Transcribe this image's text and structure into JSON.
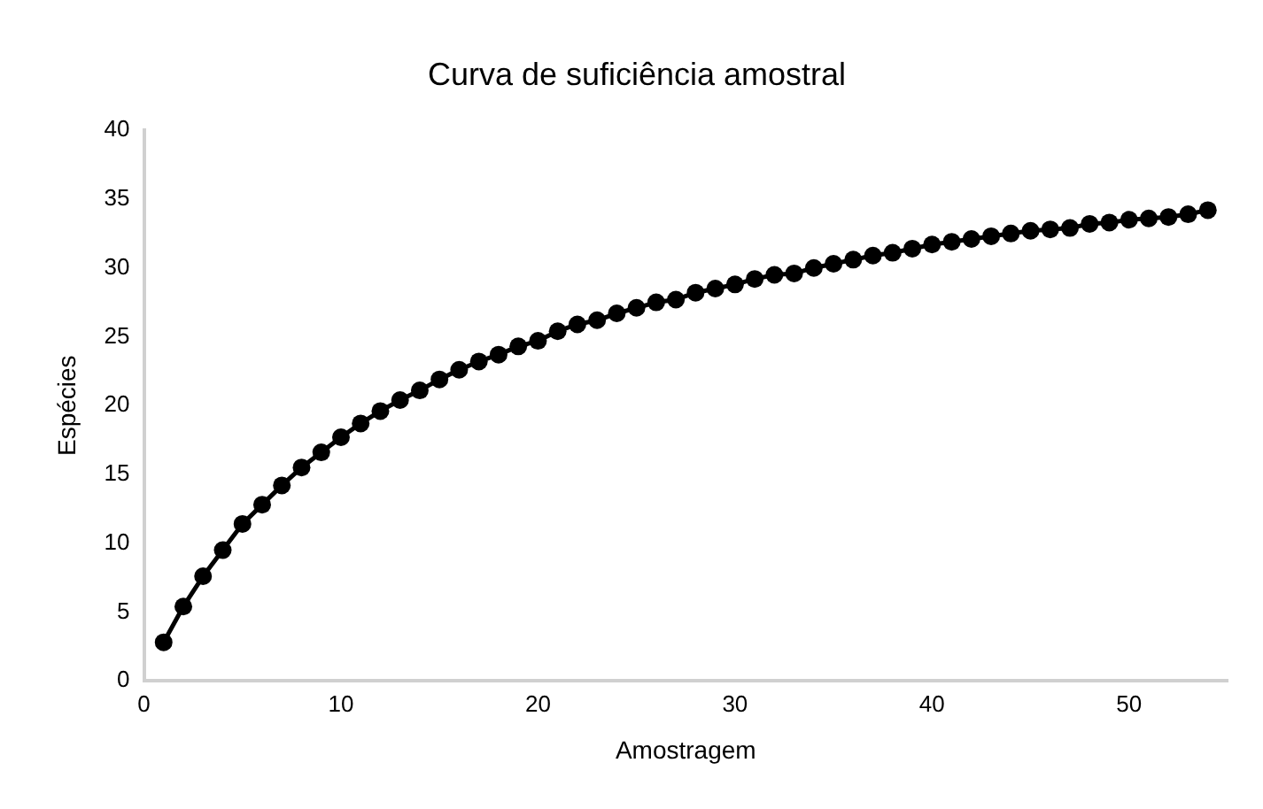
{
  "chart_data": {
    "type": "line",
    "title": "Curva de suficiência amostral",
    "xlabel": "Amostragem",
    "ylabel": "Espécies",
    "x": [
      1,
      2,
      3,
      4,
      5,
      6,
      7,
      8,
      9,
      10,
      11,
      12,
      13,
      14,
      15,
      16,
      17,
      18,
      19,
      20,
      21,
      22,
      23,
      24,
      25,
      26,
      27,
      28,
      29,
      30,
      31,
      32,
      33,
      34,
      35,
      36,
      37,
      38,
      39,
      40,
      41,
      42,
      43,
      44,
      45,
      46,
      47,
      48,
      49,
      50,
      51,
      52,
      53,
      54
    ],
    "series": [
      {
        "color": "#000000",
        "values": [
          2.8,
          5.4,
          7.6,
          9.5,
          11.4,
          12.8,
          14.2,
          15.5,
          16.6,
          17.7,
          18.7,
          19.6,
          20.4,
          21.1,
          21.9,
          22.6,
          23.2,
          23.7,
          24.3,
          24.7,
          25.4,
          25.9,
          26.2,
          26.7,
          27.1,
          27.5,
          27.7,
          28.2,
          28.5,
          28.8,
          29.2,
          29.5,
          29.6,
          30.0,
          30.3,
          30.6,
          30.9,
          31.1,
          31.4,
          31.7,
          31.9,
          32.1,
          32.3,
          32.5,
          32.7,
          32.8,
          32.9,
          33.2,
          33.3,
          33.5,
          33.6,
          33.7,
          33.9,
          34.2
        ]
      }
    ],
    "xlim": [
      0,
      55
    ],
    "xticks": [
      0,
      10,
      20,
      30,
      40,
      50
    ],
    "ylim": [
      0,
      40
    ],
    "yticks": [
      0,
      5,
      10,
      15,
      20,
      25,
      30,
      35,
      40
    ],
    "grid": false,
    "legend": false,
    "marker": "circle",
    "line_style": "solid"
  }
}
